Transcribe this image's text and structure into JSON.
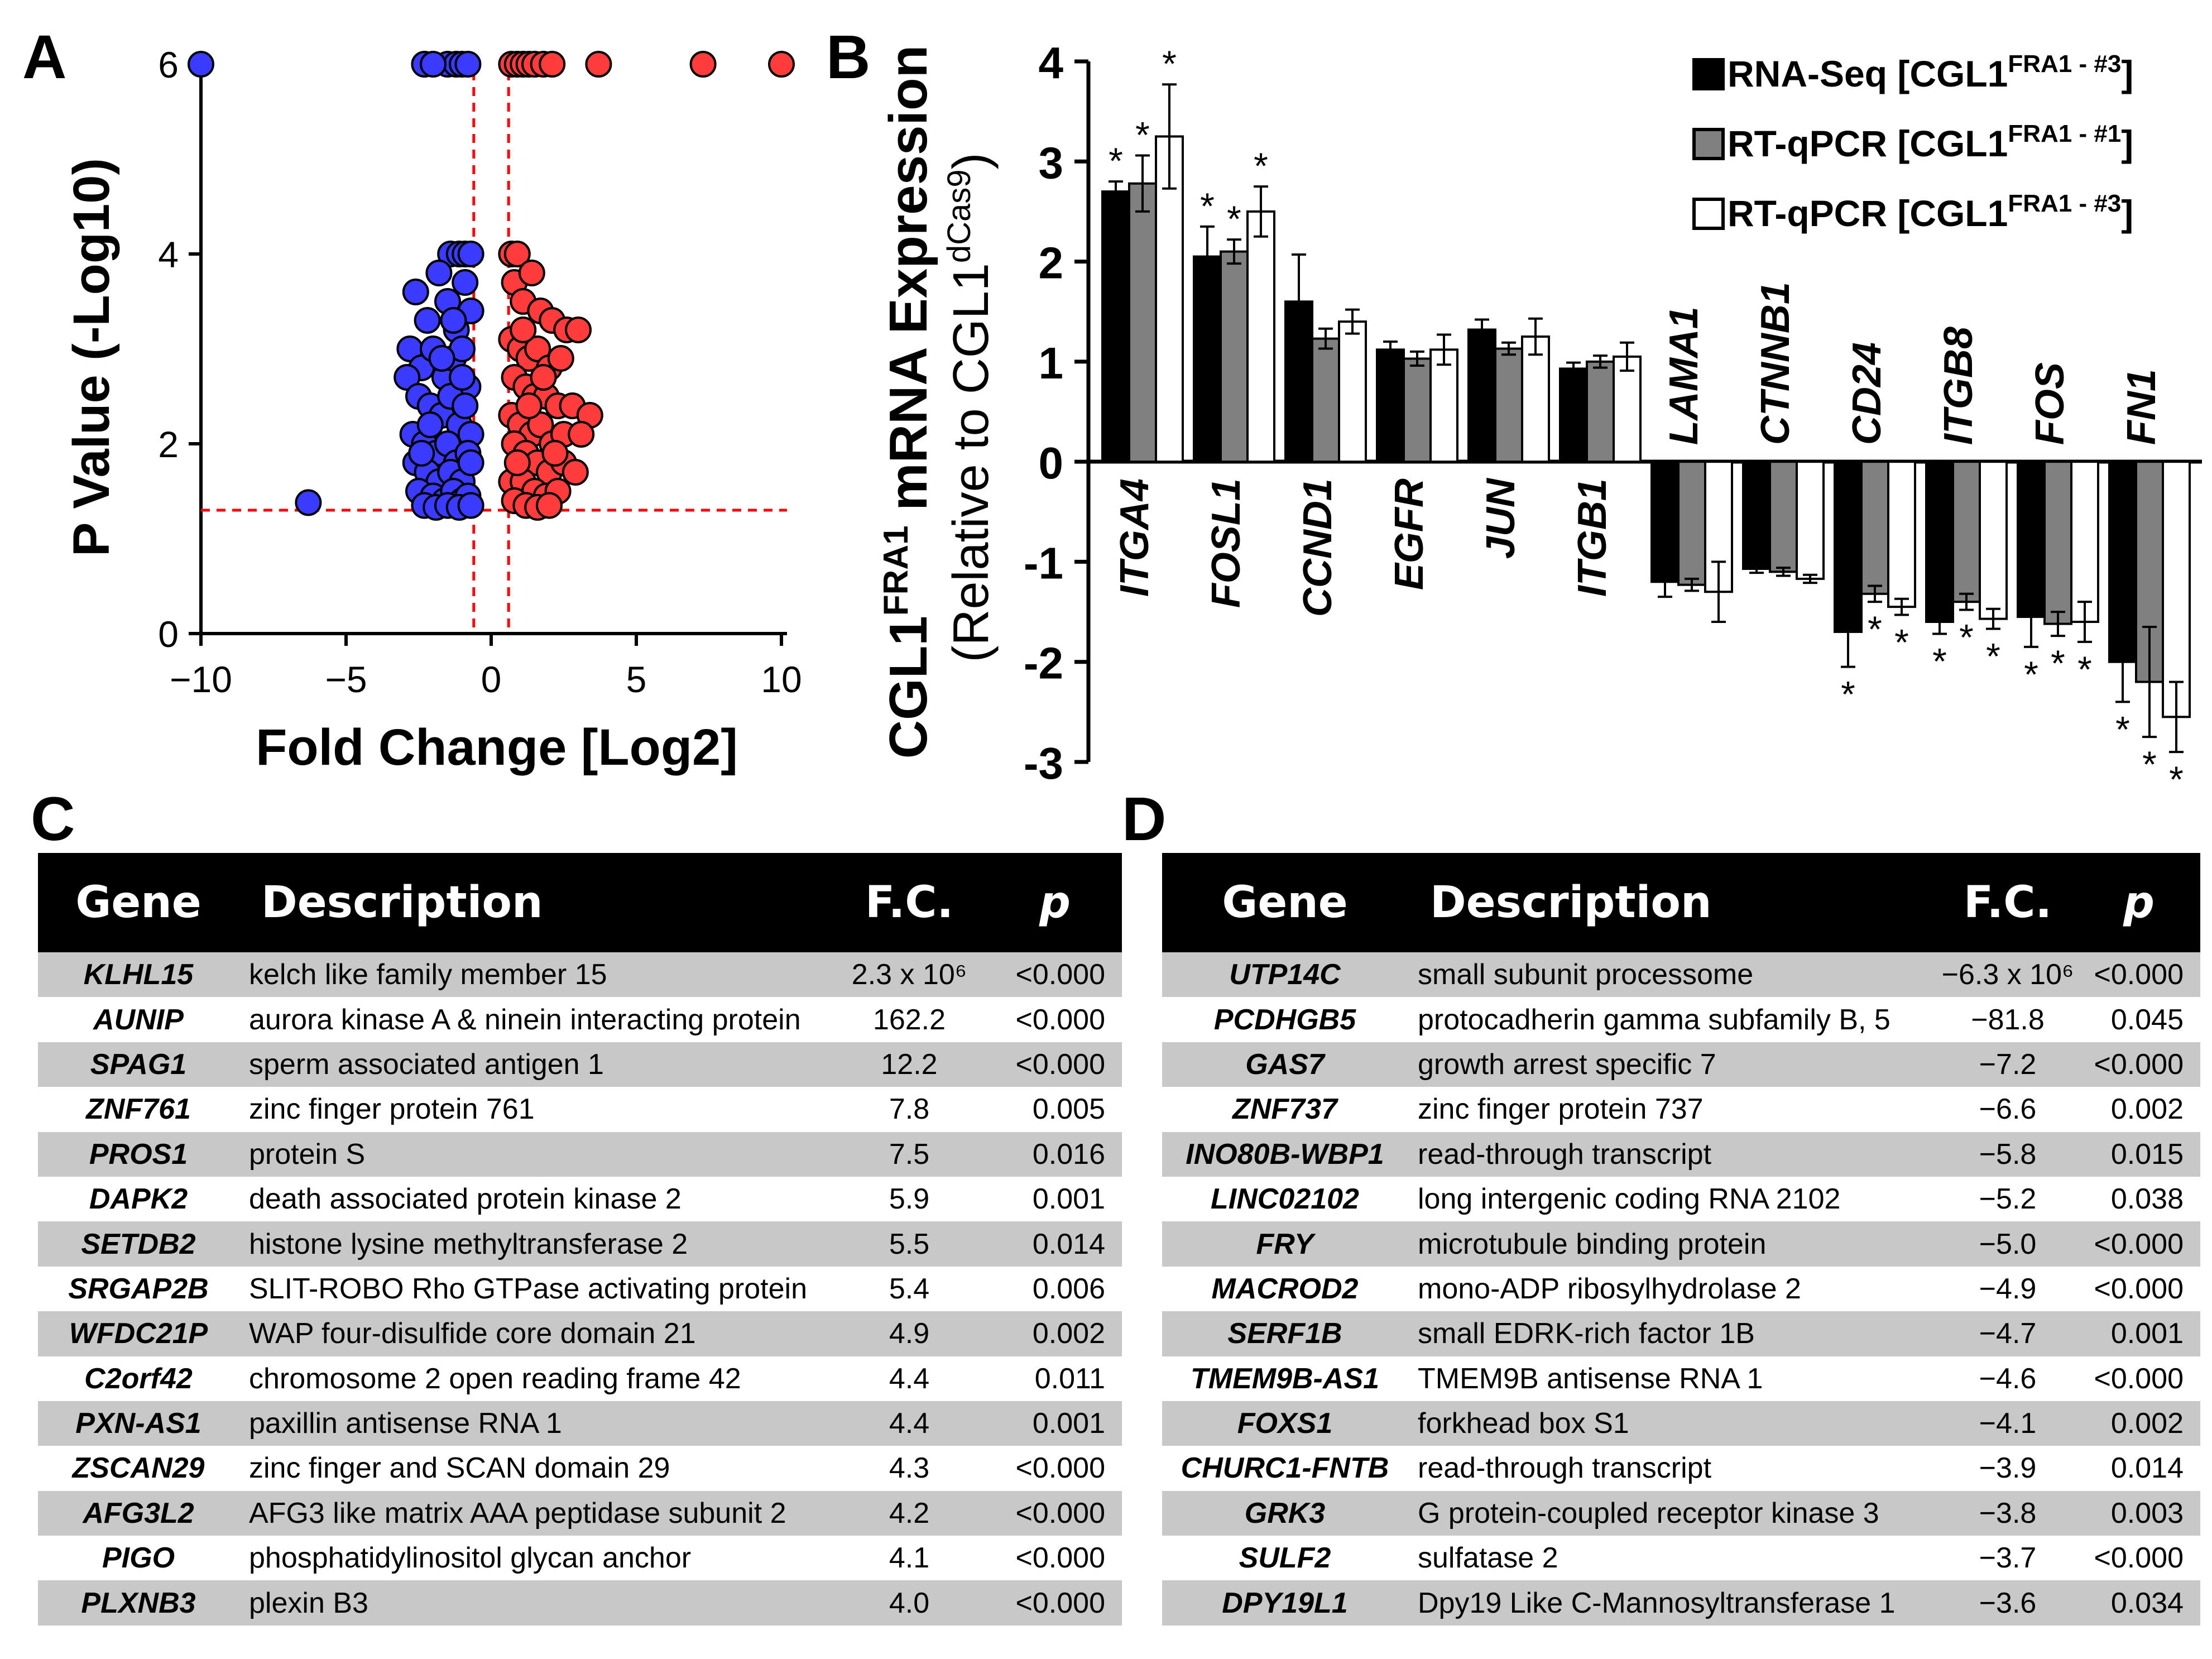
{
  "panel_labels": {
    "a": "A",
    "b": "B",
    "c": "C",
    "d": "D"
  },
  "chart_data": [
    {
      "type": "scatter",
      "title": "",
      "xlabel": "Fold Change [Log2]",
      "ylabel": "P Value (-Log10)",
      "xlim": [
        -10,
        10
      ],
      "ylim": [
        0,
        6
      ],
      "xticks": [
        -10,
        -5,
        0,
        5,
        10
      ],
      "xtick_labels": [
        "−10",
        "−5",
        "0",
        "5",
        "10"
      ],
      "yticks": [
        0,
        2,
        4,
        6
      ],
      "thresholds": {
        "fold_change": [
          -0.6,
          0.6
        ],
        "p_value": 1.3
      },
      "colors": {
        "down": "#3b3bff",
        "up": "#ff3b3b",
        "threshold": "#ff0000"
      },
      "series": [
        {
          "name": "down",
          "points": [
            [
              -10,
              6
            ],
            [
              -6.3,
              1.38
            ],
            [
              -1.5,
              6
            ],
            [
              -1.2,
              6
            ],
            [
              -1,
              6
            ],
            [
              -0.8,
              6
            ],
            [
              -2.3,
              6
            ],
            [
              -2,
              6
            ],
            [
              -1.4,
              4
            ],
            [
              -1.1,
              4
            ],
            [
              -0.9,
              4
            ],
            [
              -0.7,
              4
            ],
            [
              -2.6,
              3.6
            ],
            [
              -2.2,
              3.3
            ],
            [
              -1.8,
              3.8
            ],
            [
              -1.5,
              3.5
            ],
            [
              -1.2,
              3.2
            ],
            [
              -0.9,
              3.7
            ],
            [
              -0.7,
              3.4
            ],
            [
              -2.8,
              3.0
            ],
            [
              -2.4,
              2.8
            ],
            [
              -2.0,
              3.0
            ],
            [
              -1.6,
              2.7
            ],
            [
              -1.3,
              2.9
            ],
            [
              -1.0,
              3.0
            ],
            [
              -0.8,
              2.6
            ],
            [
              -2.9,
              2.7
            ],
            [
              -2.5,
              2.5
            ],
            [
              -2.1,
              2.4
            ],
            [
              -1.7,
              2.3
            ],
            [
              -1.4,
              2.5
            ],
            [
              -1.1,
              2.2
            ],
            [
              -0.9,
              2.4
            ],
            [
              -0.7,
              2.1
            ],
            [
              -2.7,
              2.1
            ],
            [
              -2.3,
              2.0
            ],
            [
              -1.9,
              1.9
            ],
            [
              -1.5,
              2.0
            ],
            [
              -1.2,
              1.8
            ],
            [
              -0.8,
              1.9
            ],
            [
              -2.6,
              1.8
            ],
            [
              -2.2,
              1.7
            ],
            [
              -1.8,
              1.6
            ],
            [
              -1.4,
              1.7
            ],
            [
              -1.0,
              1.6
            ],
            [
              -0.7,
              1.8
            ],
            [
              -2.5,
              1.5
            ],
            [
              -2.0,
              1.45
            ],
            [
              -1.6,
              1.4
            ],
            [
              -1.3,
              1.5
            ],
            [
              -1.0,
              1.4
            ],
            [
              -0.8,
              1.45
            ],
            [
              -2.3,
              1.35
            ],
            [
              -1.9,
              1.33
            ],
            [
              -1.5,
              1.35
            ],
            [
              -1.1,
              1.33
            ],
            [
              -0.7,
              1.35
            ],
            [
              -2.1,
              2.2
            ],
            [
              -1.7,
              2.9
            ],
            [
              -1.3,
              3.3
            ],
            [
              -1.0,
              2.7
            ],
            [
              -2.4,
              1.9
            ]
          ]
        },
        {
          "name": "up",
          "points": [
            [
              0.7,
              6
            ],
            [
              0.9,
              6
            ],
            [
              1.1,
              6
            ],
            [
              1.3,
              6
            ],
            [
              1.5,
              6
            ],
            [
              1.8,
              6
            ],
            [
              2.1,
              6
            ],
            [
              3.7,
              6
            ],
            [
              7.3,
              6
            ],
            [
              10,
              6
            ],
            [
              0.7,
              4
            ],
            [
              0.9,
              4
            ],
            [
              0.8,
              3.7
            ],
            [
              1.1,
              3.5
            ],
            [
              1.4,
              3.8
            ],
            [
              1.7,
              3.4
            ],
            [
              2.1,
              3.3
            ],
            [
              2.6,
              3.2
            ],
            [
              3.0,
              3.2
            ],
            [
              0.7,
              3.1
            ],
            [
              1.0,
              3.0
            ],
            [
              1.3,
              2.9
            ],
            [
              1.6,
              3.0
            ],
            [
              2.0,
              2.8
            ],
            [
              2.4,
              2.9
            ],
            [
              1.1,
              3.2
            ],
            [
              0.8,
              2.7
            ],
            [
              1.2,
              2.6
            ],
            [
              1.5,
              2.5
            ],
            [
              1.9,
              2.5
            ],
            [
              2.3,
              2.4
            ],
            [
              2.8,
              2.4
            ],
            [
              3.4,
              2.3
            ],
            [
              0.7,
              2.3
            ],
            [
              1.0,
              2.2
            ],
            [
              1.4,
              2.1
            ],
            [
              1.7,
              2.2
            ],
            [
              2.1,
              2.0
            ],
            [
              2.5,
              2.1
            ],
            [
              3.1,
              2.1
            ],
            [
              0.8,
              2.0
            ],
            [
              1.2,
              1.9
            ],
            [
              1.6,
              1.8
            ],
            [
              2.0,
              1.7
            ],
            [
              2.5,
              1.8
            ],
            [
              2.9,
              1.7
            ],
            [
              0.7,
              1.6
            ],
            [
              1.1,
              1.6
            ],
            [
              1.5,
              1.5
            ],
            [
              1.9,
              1.45
            ],
            [
              2.3,
              1.5
            ],
            [
              0.8,
              1.4
            ],
            [
              1.2,
              1.35
            ],
            [
              1.6,
              1.33
            ],
            [
              2.0,
              1.35
            ],
            [
              0.9,
              1.8
            ],
            [
              1.3,
              2.4
            ],
            [
              1.8,
              2.7
            ],
            [
              2.2,
              1.9
            ]
          ]
        }
      ]
    },
    {
      "type": "bar",
      "title": "",
      "ylabel": "CGL1FRA1 mRNA Expression",
      "ylabel_sub": "(Relative to CGL1dCas9)",
      "ylim": [
        -3,
        4
      ],
      "yticks": [
        -3,
        -2,
        -1,
        0,
        1,
        2,
        3,
        4
      ],
      "categories": [
        "ITGA4",
        "FOSL1",
        "CCND1",
        "EGFR",
        "JUN",
        "ITGB1",
        "LAMA1",
        "CTNNB1",
        "CD24",
        "ITGB8",
        "FOS",
        "FN1"
      ],
      "series": [
        {
          "name": "RNA-Seq [CGL1FRA1 - #3]",
          "color": "#000000",
          "values": [
            2.7,
            2.05,
            1.6,
            1.12,
            1.32,
            0.93,
            -1.2,
            -1.07,
            -1.7,
            -1.6,
            -1.55,
            -2.0
          ],
          "errors": [
            0.1,
            0.3,
            0.47,
            0.08,
            0.1,
            0.06,
            0.15,
            0.04,
            0.35,
            0.12,
            0.3,
            0.4
          ],
          "sig": [
            true,
            true,
            false,
            false,
            false,
            false,
            false,
            false,
            true,
            true,
            true,
            true
          ]
        },
        {
          "name": "RT-qPCR [CGL1FRA1 - #1]",
          "color": "#808080",
          "values": [
            2.78,
            2.1,
            1.23,
            1.03,
            1.13,
            1.0,
            -1.23,
            -1.1,
            -1.32,
            -1.4,
            -1.62,
            -2.2
          ],
          "errors": [
            0.28,
            0.12,
            0.1,
            0.07,
            0.06,
            0.06,
            0.06,
            0.04,
            0.08,
            0.08,
            0.12,
            0.55
          ],
          "sig": [
            true,
            true,
            false,
            false,
            false,
            false,
            false,
            false,
            true,
            true,
            true,
            true
          ]
        },
        {
          "name": "RT-qPCR [CGL1FRA1 - #3]",
          "color": "#ffffff",
          "values": [
            3.25,
            2.5,
            1.4,
            1.12,
            1.25,
            1.05,
            -1.3,
            -1.17,
            -1.45,
            -1.57,
            -1.6,
            -2.55
          ],
          "errors": [
            0.52,
            0.25,
            0.12,
            0.15,
            0.18,
            0.14,
            0.3,
            0.04,
            0.08,
            0.1,
            0.2,
            0.35
          ],
          "sig": [
            true,
            true,
            false,
            false,
            false,
            false,
            false,
            false,
            true,
            true,
            true,
            true
          ]
        }
      ],
      "sig_marker": "*"
    }
  ],
  "legend_b": [
    {
      "main": "RNA-Seq [CGL1",
      "sup": "FRA1 - #3",
      "end": "]"
    },
    {
      "main": "RT-qPCR [CGL1",
      "sup": "FRA1 - #1",
      "end": "]"
    },
    {
      "main": "RT-qPCR [CGL1",
      "sup": "FRA1 - #3",
      "end": "]"
    }
  ],
  "ylabel_b": {
    "main": "CGL1",
    "sup": "FRA1",
    "rest": " mRNA Expression",
    "sub_open": "(Relative to CGL1",
    "sub_sup": "dCas9",
    "sub_close": ")"
  },
  "table_c": {
    "headers": {
      "gene": "Gene",
      "description": "Description",
      "fc": "F.C.",
      "p": "p"
    },
    "rows": [
      {
        "gene": "KLHL15",
        "description": "kelch like family member 15",
        "fc": "2.3 x 10⁶",
        "p": "<0.000"
      },
      {
        "gene": "AUNIP",
        "description": "aurora kinase A & ninein interacting protein",
        "fc": "162.2",
        "p": "<0.000"
      },
      {
        "gene": "SPAG1",
        "description": "sperm associated antigen 1",
        "fc": "12.2",
        "p": "<0.000"
      },
      {
        "gene": "ZNF761",
        "description": "zinc finger protein 761",
        "fc": "7.8",
        "p": "0.005"
      },
      {
        "gene": "PROS1",
        "description": "protein S",
        "fc": "7.5",
        "p": "0.016"
      },
      {
        "gene": "DAPK2",
        "description": "death associated protein kinase 2",
        "fc": "5.9",
        "p": "0.001"
      },
      {
        "gene": "SETDB2",
        "description": "histone lysine methyltransferase 2",
        "fc": "5.5",
        "p": "0.014"
      },
      {
        "gene": "SRGAP2B",
        "description": "SLIT-ROBO Rho GTPase activating protein",
        "fc": "5.4",
        "p": "0.006"
      },
      {
        "gene": "WFDC21P",
        "description": "WAP four-disulfide core domain 21",
        "fc": "4.9",
        "p": "0.002"
      },
      {
        "gene": "C2orf42",
        "description": "chromosome 2 open reading frame 42",
        "fc": "4.4",
        "p": "0.011"
      },
      {
        "gene": "PXN-AS1",
        "description": "paxillin antisense RNA 1",
        "fc": "4.4",
        "p": "0.001"
      },
      {
        "gene": "ZSCAN29",
        "description": "zinc finger and SCAN domain 29",
        "fc": "4.3",
        "p": "<0.000"
      },
      {
        "gene": "AFG3L2",
        "description": "AFG3 like matrix AAA peptidase subunit 2",
        "fc": "4.2",
        "p": "<0.000"
      },
      {
        "gene": "PIGO",
        "description": "phosphatidylinositol glycan anchor",
        "fc": "4.1",
        "p": "<0.000"
      },
      {
        "gene": "PLXNB3",
        "description": "plexin B3",
        "fc": "4.0",
        "p": "<0.000"
      }
    ]
  },
  "table_d": {
    "headers": {
      "gene": "Gene",
      "description": "Description",
      "fc": "F.C.",
      "p": "p"
    },
    "rows": [
      {
        "gene": "UTP14C",
        "description": "small subunit processome",
        "fc": "−6.3 x 10⁶",
        "p": "<0.000"
      },
      {
        "gene": "PCDHGB5",
        "description": "protocadherin gamma subfamily B, 5",
        "fc": "−81.8",
        "p": "0.045"
      },
      {
        "gene": "GAS7",
        "description": "growth arrest specific 7",
        "fc": "−7.2",
        "p": "<0.000"
      },
      {
        "gene": "ZNF737",
        "description": "zinc finger protein 737",
        "fc": "−6.6",
        "p": "0.002"
      },
      {
        "gene": "INO80B-WBP1",
        "description": "read-through transcript",
        "fc": "−5.8",
        "p": "0.015"
      },
      {
        "gene": "LINC02102",
        "description": "long intergenic coding RNA 2102",
        "fc": "−5.2",
        "p": "0.038"
      },
      {
        "gene": "FRY",
        "description": "microtubule binding protein",
        "fc": "−5.0",
        "p": "<0.000"
      },
      {
        "gene": "MACROD2",
        "description": "mono-ADP ribosylhydrolase 2",
        "fc": "−4.9",
        "p": "<0.000"
      },
      {
        "gene": "SERF1B",
        "description": "small EDRK-rich factor 1B",
        "fc": "−4.7",
        "p": "0.001"
      },
      {
        "gene": "TMEM9B-AS1",
        "description": "TMEM9B antisense RNA 1",
        "fc": "−4.6",
        "p": "<0.000"
      },
      {
        "gene": "FOXS1",
        "description": "forkhead box S1",
        "fc": "−4.1",
        "p": "0.002"
      },
      {
        "gene": "CHURC1-FNTB",
        "description": "read-through transcript",
        "fc": "−3.9",
        "p": "0.014"
      },
      {
        "gene": "GRK3",
        "description": "G protein-coupled receptor kinase 3",
        "fc": "−3.8",
        "p": "0.003"
      },
      {
        "gene": "SULF2",
        "description": "sulfatase 2",
        "fc": "−3.7",
        "p": "<0.000"
      },
      {
        "gene": "DPY19L1",
        "description": "Dpy19 Like C-Mannosyltransferase 1",
        "fc": "−3.6",
        "p": "0.034"
      }
    ]
  }
}
